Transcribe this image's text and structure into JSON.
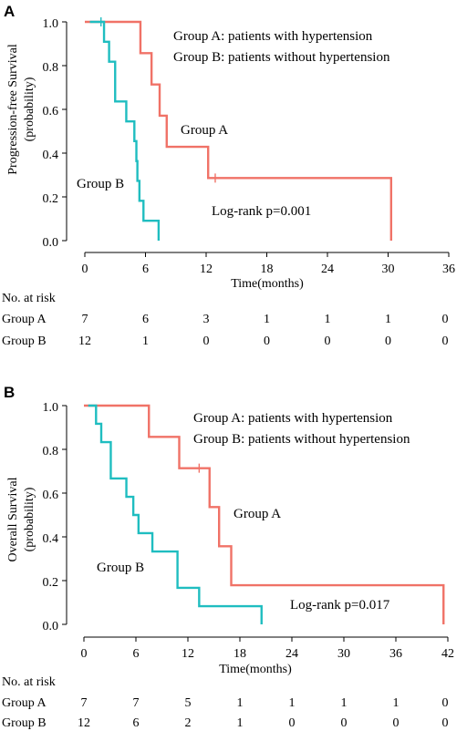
{
  "colors": {
    "group_a": "#f07267",
    "group_b": "#1fbdc0",
    "axis": "#000000"
  },
  "chart_data": [
    {
      "panel": "A",
      "type": "line",
      "subtype": "kaplan-meier",
      "ylabel_lines": [
        "Progression-free Survival",
        "(probability)"
      ],
      "xlabel": "Time(months)",
      "xlim": [
        0,
        36
      ],
      "ylim": [
        0,
        1
      ],
      "x_ticks": [
        0,
        6,
        12,
        18,
        24,
        30,
        36
      ],
      "y_ticks": [
        "0.0",
        "0.2",
        "0.4",
        "0.6",
        "0.8",
        "1.0"
      ],
      "legend_lines": [
        "Group A: patients with hypertension",
        "Group B: patients without hypertension"
      ],
      "pvalue_label": "Log-rank  p=0.001",
      "series": [
        {
          "name": "Group A",
          "label": "Group A",
          "color": "#f07267",
          "steps": [
            [
              0,
              1.0
            ],
            [
              5.5,
              0.857
            ],
            [
              6.6,
              0.714
            ],
            [
              7.4,
              0.571
            ],
            [
              8.1,
              0.429
            ],
            [
              12.2,
              0.286
            ],
            [
              30.3,
              0.0
            ]
          ],
          "end_x": 30.3,
          "censor": [
            [
              12.9,
              0.286
            ]
          ]
        },
        {
          "name": "Group B",
          "label": "Group B",
          "color": "#1fbdc0",
          "steps": [
            [
              0.5,
              1.0
            ],
            [
              1.9,
              0.909
            ],
            [
              2.4,
              0.818
            ],
            [
              3.0,
              0.636
            ],
            [
              4.1,
              0.545
            ],
            [
              4.9,
              0.455
            ],
            [
              5.1,
              0.364
            ],
            [
              5.2,
              0.273
            ],
            [
              5.4,
              0.182
            ],
            [
              5.8,
              0.091
            ],
            [
              7.3,
              0.0
            ]
          ],
          "end_x": 7.3,
          "censor": [
            [
              1.6,
              1.0
            ]
          ]
        }
      ],
      "risk_table": {
        "title": "No. at risk",
        "rows": [
          {
            "label": "Group A",
            "values": [
              "7",
              "6",
              "3",
              "1",
              "1",
              "1",
              "0"
            ]
          },
          {
            "label": "Group B",
            "values": [
              "12",
              "1",
              "0",
              "0",
              "0",
              "0",
              "0"
            ]
          }
        ]
      }
    },
    {
      "panel": "B",
      "type": "line",
      "subtype": "kaplan-meier",
      "ylabel_lines": [
        "Overall Survival",
        "(probability)"
      ],
      "xlabel": "Time(months)",
      "xlim": [
        0,
        42
      ],
      "ylim": [
        0,
        1
      ],
      "x_ticks": [
        0,
        6,
        12,
        18,
        24,
        30,
        36,
        42
      ],
      "y_ticks": [
        "0.0",
        "0.2",
        "0.4",
        "0.6",
        "0.8",
        "1.0"
      ],
      "legend_lines": [
        "Group A: patients with hypertension",
        "Group B: patients without hypertension"
      ],
      "pvalue_label": "Log-rank  p=0.017",
      "series": [
        {
          "name": "Group A",
          "label": "Group A",
          "color": "#f07267",
          "steps": [
            [
              0,
              1.0
            ],
            [
              7.5,
              0.857
            ],
            [
              11.0,
              0.714
            ],
            [
              14.5,
              0.536
            ],
            [
              15.6,
              0.357
            ],
            [
              17.0,
              0.179
            ],
            [
              41.5,
              0.0
            ]
          ],
          "end_x": 41.5,
          "censor": [
            [
              13.3,
              0.714
            ]
          ]
        },
        {
          "name": "Group B",
          "label": "Group B",
          "color": "#1fbdc0",
          "steps": [
            [
              0.5,
              1.0
            ],
            [
              1.4,
              0.917
            ],
            [
              2.0,
              0.833
            ],
            [
              3.1,
              0.667
            ],
            [
              4.9,
              0.583
            ],
            [
              5.7,
              0.5
            ],
            [
              6.3,
              0.417
            ],
            [
              7.9,
              0.333
            ],
            [
              10.8,
              0.167
            ],
            [
              13.3,
              0.083
            ],
            [
              20.5,
              0.0
            ]
          ],
          "end_x": 20.5,
          "censor": []
        }
      ],
      "risk_table": {
        "title": "No. at risk",
        "rows": [
          {
            "label": "Group A",
            "values": [
              "7",
              "7",
              "5",
              "1",
              "1",
              "1",
              "1",
              "0"
            ]
          },
          {
            "label": "Group B",
            "values": [
              "12",
              "6",
              "2",
              "1",
              "0",
              "0",
              "0",
              "0"
            ]
          }
        ]
      }
    }
  ]
}
